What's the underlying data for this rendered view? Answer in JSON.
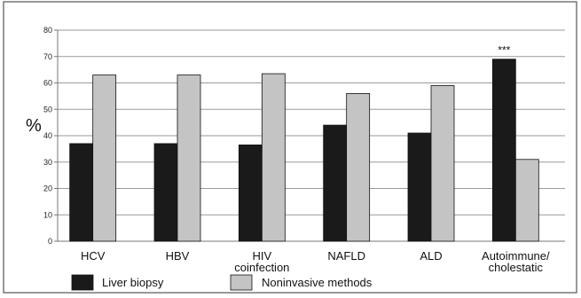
{
  "chart_data": {
    "type": "bar",
    "title": "",
    "xlabel": "",
    "ylabel": "%",
    "ylim": [
      0,
      80
    ],
    "yticks": [
      0,
      10,
      20,
      30,
      40,
      50,
      60,
      70,
      80
    ],
    "grid": true,
    "legend_position": "bottom",
    "categories": [
      "HCV",
      "HBV",
      "HIV\ncoinfection",
      "NAFLD",
      "ALD",
      "Autoimmune/\ncholestatic"
    ],
    "series": [
      {
        "name": "Liver biopsy",
        "color": "#1a1a1a",
        "values": [
          37,
          37,
          36.5,
          44,
          41,
          69
        ]
      },
      {
        "name": "Noninvasive methods",
        "color": "#c4c4c4",
        "values": [
          63,
          63,
          63.5,
          56,
          59,
          31
        ]
      }
    ],
    "annotations": [
      {
        "category": "Autoimmune/\ncholestatic",
        "series": "Liver biopsy",
        "text": "***"
      }
    ]
  }
}
